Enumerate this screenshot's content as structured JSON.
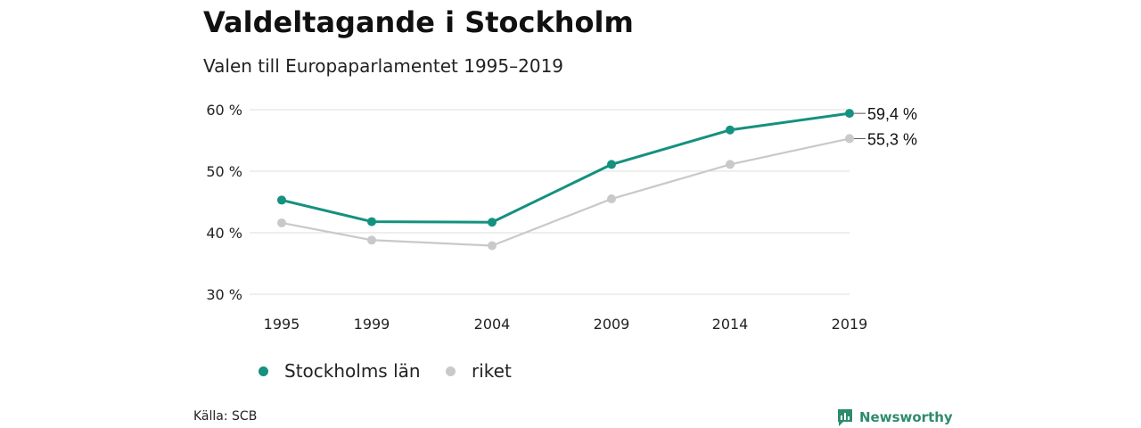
{
  "title": "Valdeltagande i Stockholm",
  "subtitle": "Valen till Europaparlamentet 1995–2019",
  "source": "Källa: SCB",
  "brand": {
    "name": "Newsworthy",
    "icon": "newsworthy-logo-icon",
    "color": "#2e8b6e"
  },
  "chart_data": {
    "type": "line",
    "x": [
      "1995",
      "1999",
      "2004",
      "2009",
      "2014",
      "2019"
    ],
    "y_ticks": [
      "30 %",
      "40 %",
      "50 %",
      "60 %"
    ],
    "ylim": [
      30,
      60
    ],
    "grid": true,
    "legend_position": "bottom-left",
    "series": [
      {
        "name": "Stockholms län",
        "color": "#14917f",
        "values": [
          45.3,
          41.8,
          41.7,
          51.1,
          56.7,
          59.4
        ],
        "end_label": "59,4 %"
      },
      {
        "name": "riket",
        "color": "#c9c9c9",
        "values": [
          41.6,
          38.8,
          37.9,
          45.5,
          51.1,
          55.3
        ],
        "end_label": "55,3 %"
      }
    ]
  }
}
